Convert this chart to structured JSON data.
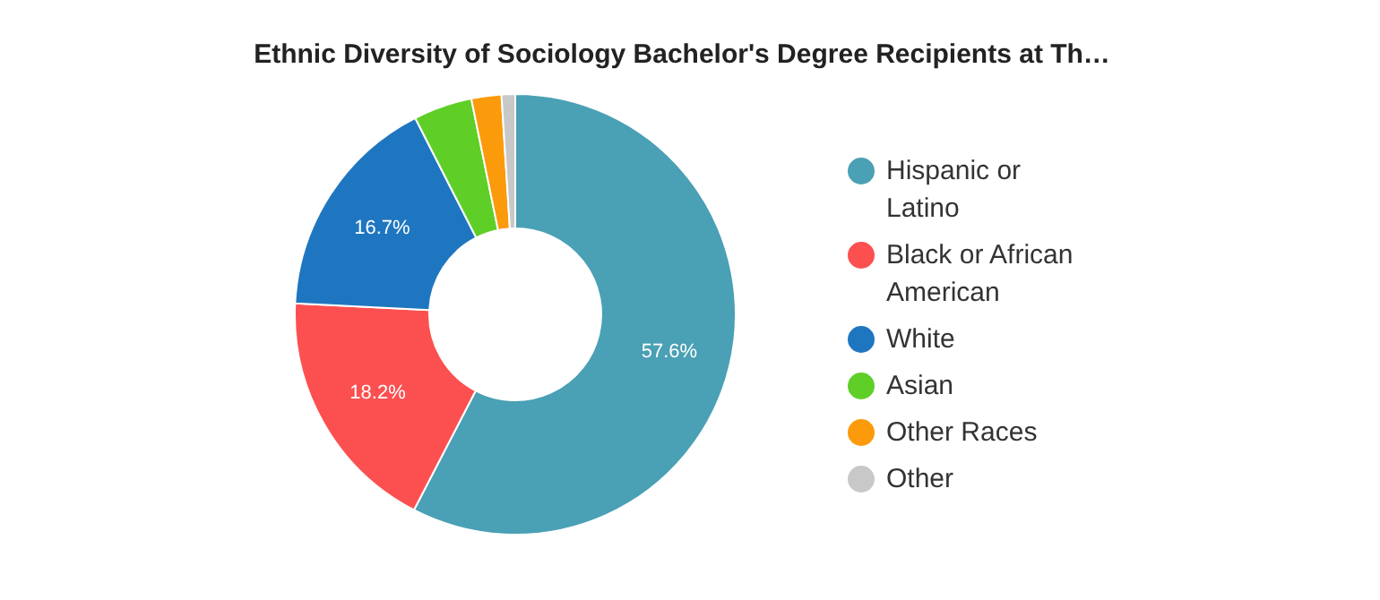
{
  "chart_data": {
    "type": "donut",
    "title": "Ethnic Diversity of Sociology Bachelor's Degree Recipients at Th…",
    "categories": [
      "Hispanic or Latino",
      "Black or African American",
      "White",
      "Asian",
      "Other Races",
      "Other"
    ],
    "values": [
      57.6,
      18.2,
      16.7,
      4.3,
      2.2,
      1.0
    ],
    "colors": [
      "#4aa0b5",
      "#fc5050",
      "#1f76c0",
      "#5fcf28",
      "#fb9a0b",
      "#c8c8c8"
    ],
    "value_labels": [
      "57.6%",
      "18.2%",
      "16.7%",
      null,
      null,
      null
    ],
    "legend": "right"
  }
}
